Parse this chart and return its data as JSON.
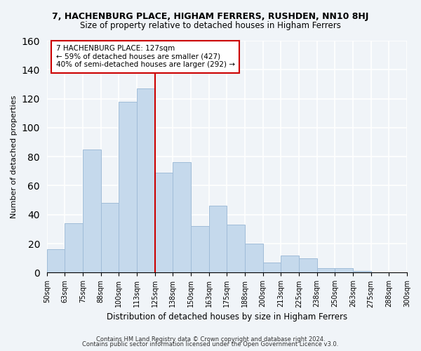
{
  "title": "7, HACHENBURG PLACE, HIGHAM FERRERS, RUSHDEN, NN10 8HJ",
  "subtitle": "Size of property relative to detached houses in Higham Ferrers",
  "xlabel": "Distribution of detached houses by size in Higham Ferrers",
  "ylabel": "Number of detached properties",
  "footer1": "Contains HM Land Registry data © Crown copyright and database right 2024.",
  "footer2": "Contains public sector information licensed under the Open Government Licence v3.0.",
  "bin_labels": [
    "50sqm",
    "63sqm",
    "75sqm",
    "88sqm",
    "100sqm",
    "113sqm",
    "125sqm",
    "138sqm",
    "150sqm",
    "163sqm",
    "175sqm",
    "188sqm",
    "200sqm",
    "213sqm",
    "225sqm",
    "238sqm",
    "250sqm",
    "263sqm",
    "275sqm",
    "288sqm",
    "300sqm"
  ],
  "bar_heights": [
    16,
    34,
    85,
    48,
    118,
    127,
    69,
    76,
    32,
    46,
    33,
    20,
    7,
    12,
    10,
    3,
    3,
    1,
    0,
    0
  ],
  "bar_color": "#c5d9ec",
  "bar_edge_color": "#a0bcd8",
  "vline_color": "#cc0000",
  "annotation_title": "7 HACHENBURG PLACE: 127sqm",
  "annotation_line1": "← 59% of detached houses are smaller (427)",
  "annotation_line2": "40% of semi-detached houses are larger (292) →",
  "annotation_box_color": "#ffffff",
  "annotation_box_edge": "#cc0000",
  "ylim": [
    0,
    160
  ],
  "yticks": [
    0,
    20,
    40,
    60,
    80,
    100,
    120,
    140,
    160
  ],
  "background_color": "#f0f4f8",
  "grid_color": "#ffffff",
  "title_fontsize": 9,
  "subtitle_fontsize": 8
}
